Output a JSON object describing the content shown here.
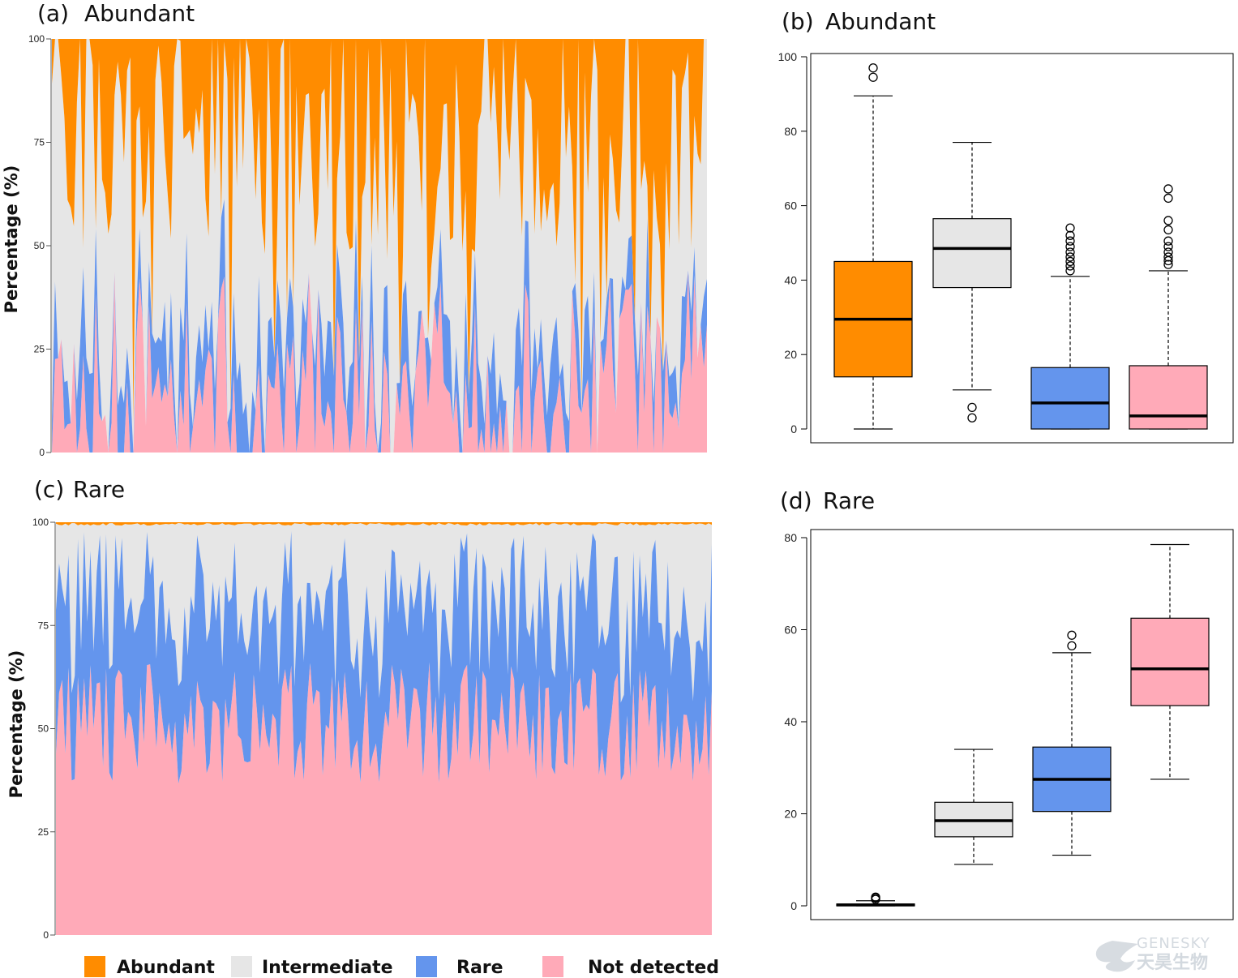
{
  "colors": {
    "abundant": "#ff8c00",
    "intermediate": "#e6e6e6",
    "rare": "#6495ed",
    "not_detected": "#ffaab8",
    "box_line": "#000000"
  },
  "legend": [
    {
      "label": "Abundant",
      "color": "#ff8c00"
    },
    {
      "label": "Intermediate",
      "color": "#e6e6e6"
    },
    {
      "label": "Rare",
      "color": "#6495ed"
    },
    {
      "label": "Not detected",
      "color": "#ffaab8"
    }
  ],
  "watermark": {
    "line1": "GENESKY",
    "line2": "天昊生物"
  },
  "chart_data": [
    {
      "panel": "(a)",
      "title": "Abundant",
      "type": "area",
      "stacked": true,
      "ylabel": "Percentage  (%)",
      "ylim": [
        0,
        100
      ],
      "yticks": [
        0,
        25,
        50,
        75,
        100
      ],
      "n_samples": 210,
      "series_order_bottom_to_top": [
        "Not detected",
        "Rare",
        "Intermediate",
        "Abundant"
      ],
      "series_summary": {
        "Abundant": {
          "median": 29,
          "q1": 14,
          "q3": 45
        },
        "Intermediate": {
          "median": 48,
          "q1": 38,
          "q3": 57
        },
        "Rare": {
          "median": 7,
          "q1": 0,
          "q3": 17
        },
        "Not detected": {
          "median": 3,
          "q1": 0,
          "q3": 17
        }
      }
    },
    {
      "panel": "(b)",
      "title": "Abundant",
      "type": "box",
      "ylim": [
        0,
        100
      ],
      "yticks": [
        0,
        20,
        40,
        60,
        80,
        100
      ],
      "boxes": [
        {
          "group": "Abundant",
          "min": 0,
          "q1": 14,
          "median": 29.5,
          "q3": 45,
          "max": 89.5,
          "outliers": [
            94.5,
            97
          ]
        },
        {
          "group": "Intermediate",
          "min": 10.5,
          "q1": 38,
          "median": 48.5,
          "q3": 56.5,
          "max": 77,
          "outliers": [
            3,
            5.8
          ]
        },
        {
          "group": "Rare",
          "min": 0,
          "q1": 0,
          "median": 7,
          "q3": 16.5,
          "max": 41,
          "outliers": [
            42.5,
            43.8,
            45,
            46.2,
            47.5,
            49,
            50.5,
            52,
            54
          ]
        },
        {
          "group": "Not detected",
          "min": 0,
          "q1": 0,
          "median": 3.5,
          "q3": 17,
          "max": 42.5,
          "outliers": [
            44.2,
            45.2,
            46.2,
            47.5,
            49,
            50.5,
            53.5,
            56,
            62,
            64.5
          ]
        }
      ]
    },
    {
      "panel": "(c)",
      "title": "Rare",
      "type": "area",
      "stacked": true,
      "ylabel": "Percentage  (%)",
      "ylim": [
        0,
        100
      ],
      "yticks": [
        0,
        25,
        50,
        75,
        100
      ],
      "n_samples": 210,
      "series_order_bottom_to_top": [
        "Not detected",
        "Rare",
        "Intermediate",
        "Abundant"
      ],
      "series_summary": {
        "Abundant": {
          "median": 0.2,
          "q1": 0,
          "q3": 0.3
        },
        "Intermediate": {
          "median": 18.5,
          "q1": 15,
          "q3": 22.5
        },
        "Rare": {
          "median": 27.5,
          "q1": 20.5,
          "q3": 34.5
        },
        "Not detected": {
          "median": 51.5,
          "q1": 43.5,
          "q3": 62.5
        }
      }
    },
    {
      "panel": "(d)",
      "title": "Rare",
      "type": "box",
      "ylim": [
        0,
        80
      ],
      "yticks": [
        0,
        20,
        40,
        60,
        80
      ],
      "boxes": [
        {
          "group": "Abundant",
          "min": 0,
          "q1": 0,
          "median": 0.2,
          "q3": 0.4,
          "max": 1.1,
          "outliers": [
            1.4,
            1.7,
            1.9
          ]
        },
        {
          "group": "Intermediate",
          "min": 9,
          "q1": 15,
          "median": 18.5,
          "q3": 22.5,
          "max": 34,
          "outliers": []
        },
        {
          "group": "Rare",
          "min": 11,
          "q1": 20.5,
          "median": 27.5,
          "q3": 34.5,
          "max": 55,
          "outliers": [
            56.5,
            58.8
          ]
        },
        {
          "group": "Not detected",
          "min": 27.5,
          "q1": 43.5,
          "median": 51.5,
          "q3": 62.5,
          "max": 78.5,
          "outliers": []
        }
      ]
    }
  ]
}
